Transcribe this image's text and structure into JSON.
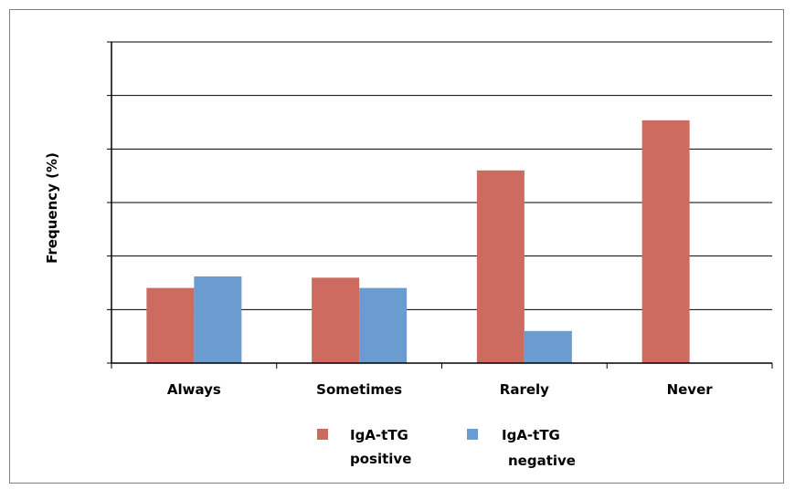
{
  "chart_data": {
    "type": "bar",
    "title": "",
    "xlabel": "",
    "ylabel": "Frequency (%)",
    "categories": [
      "Always",
      "Sometimes",
      "Rarely",
      "Never"
    ],
    "ylim": [
      0,
      50
    ],
    "yticks": [
      0,
      8.33,
      16.67,
      25,
      33.33,
      41.67,
      50
    ],
    "y_tick_labels_shown": false,
    "grid": true,
    "legend_position": "bottom",
    "series": [
      {
        "name": "IgA-tTG positive",
        "name_lines": [
          "IgA-tTG",
          "positive"
        ],
        "color": "#cd6b60",
        "values": [
          11.7,
          13.3,
          30,
          37.8
        ]
      },
      {
        "name": "IgA-tTG negative",
        "name_lines": [
          "IgA-tTG",
          "negative"
        ],
        "color": "#6b9ccf",
        "values": [
          13.5,
          11.7,
          5,
          0
        ]
      }
    ]
  }
}
